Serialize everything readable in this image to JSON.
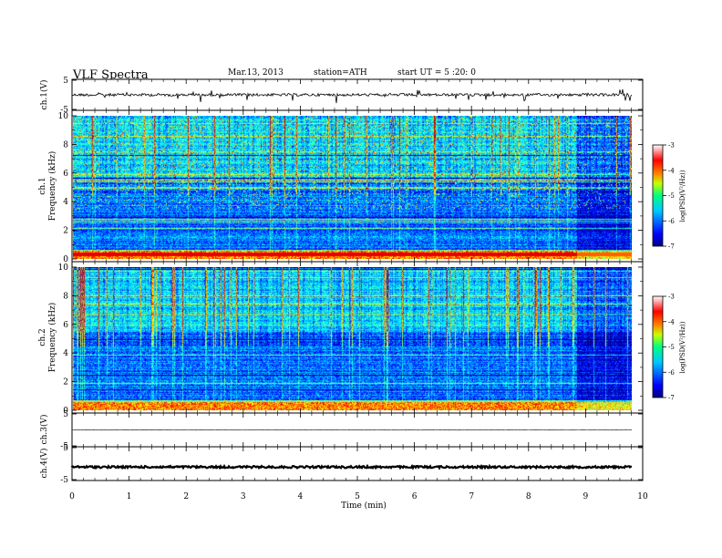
{
  "header": {
    "title": "VLF Spectra",
    "date": "Mar.13, 2013",
    "station": "station=ATH",
    "start": "start UT = 5 :20: 0"
  },
  "chart_data": [
    {
      "type": "line",
      "panel": "ch1-waveform",
      "ylabel": "ch.1(V)",
      "ylim": [
        -5,
        5
      ],
      "yticks": [
        "5",
        "-5"
      ],
      "description_level": 0
    },
    {
      "type": "heatmap",
      "panel": "ch1-spectrogram",
      "ylabel": "ch.1\nFrequency (kHz)",
      "ylabel_lines": [
        "ch.1",
        "Frequency (kHz)"
      ],
      "ylim": [
        0,
        10
      ],
      "yticks": [
        "0",
        "2",
        "4",
        "6",
        "8",
        "10"
      ],
      "colorbar": {
        "label": "log(PSD(V²/Hz))",
        "range": [
          -7,
          -3
        ],
        "ticks": [
          "-3",
          "-4",
          "-5",
          "-6",
          "-7"
        ]
      }
    },
    {
      "type": "heatmap",
      "panel": "ch2-spectrogram",
      "ylabel_lines": [
        "ch.2",
        "Frequency (kHz)"
      ],
      "ylim": [
        0,
        10
      ],
      "yticks": [
        "0",
        "2",
        "4",
        "6",
        "8",
        "10"
      ],
      "colorbar": {
        "label": "log(PSD(V²/Hz))",
        "range": [
          -7,
          -3
        ],
        "ticks": [
          "-3",
          "-4",
          "-5",
          "-6",
          "-7"
        ]
      }
    },
    {
      "type": "line",
      "panel": "ch3-waveform",
      "ylabel": "ch.3(V)",
      "ylim": [
        -5,
        5
      ],
      "yticks": [
        "5",
        "-5"
      ],
      "level": 0
    },
    {
      "type": "line",
      "panel": "ch4-waveform",
      "ylabel": "ch.4(V)",
      "ylim": [
        -5,
        5
      ],
      "yticks": [
        "5",
        "-5"
      ],
      "level": -1
    }
  ],
  "xaxis": {
    "label": "Time (min)",
    "xlim": [
      0,
      10
    ],
    "ticks": [
      "0",
      "1",
      "2",
      "3",
      "4",
      "5",
      "6",
      "7",
      "8",
      "9",
      "10"
    ],
    "data_end": 9.82
  },
  "colors": {
    "jet": [
      "#00007f",
      "#0000ff",
      "#007fff",
      "#00ffff",
      "#7fff7f",
      "#ffff00",
      "#ff7f00",
      "#ff0000",
      "#ffffff"
    ]
  }
}
